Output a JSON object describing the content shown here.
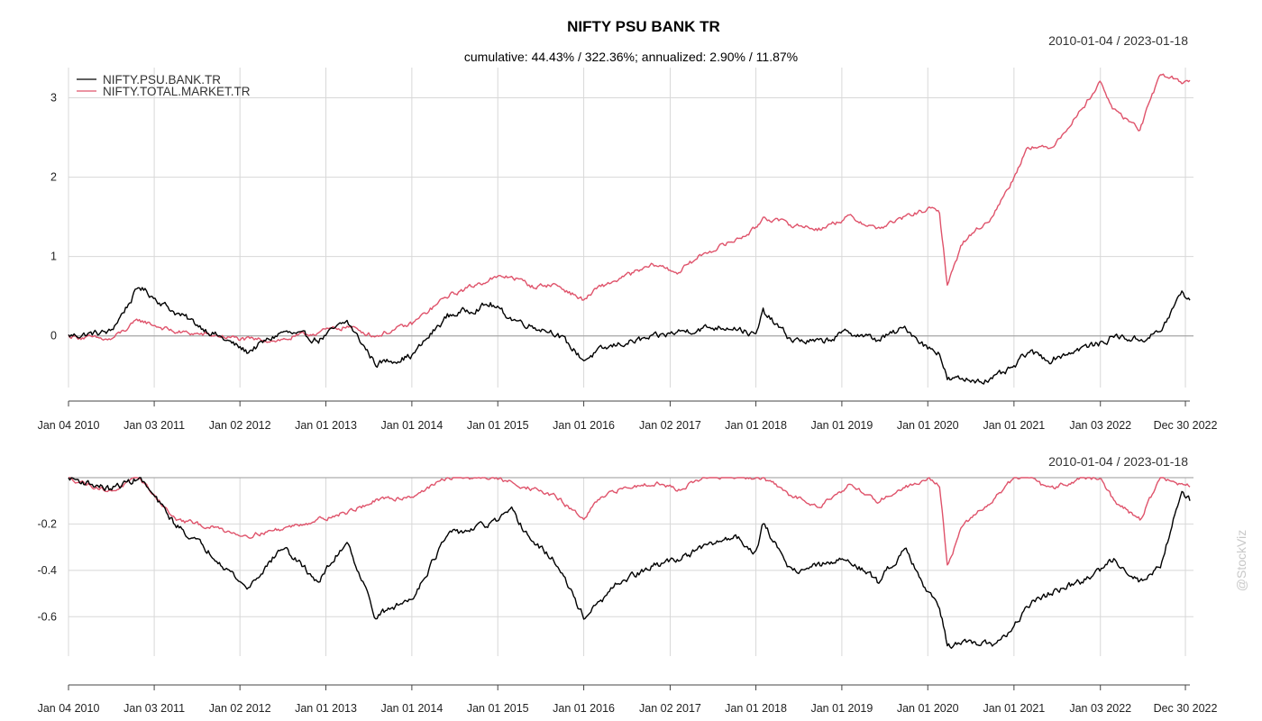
{
  "chart_data": [
    {
      "type": "line",
      "panel": "cumulative returns",
      "title": "NIFTY PSU BANK TR",
      "subtitle": "cumulative: 44.43% / 322.36%; annualized: 2.90% / 11.87%",
      "date_range": "2010-01-04 / 2023-01-18",
      "x_tick_labels": [
        "Jan 04 2010",
        "Jan 03 2011",
        "Jan 02 2012",
        "Jan 01 2013",
        "Jan 01 2014",
        "Jan 01 2015",
        "Jan 01 2016",
        "Jan 02 2017",
        "Jan 01 2018",
        "Jan 01 2019",
        "Jan 01 2020",
        "Jan 01 2021",
        "Jan 03 2022",
        "Dec 30 2022"
      ],
      "y_ticks": [
        0,
        1,
        2,
        3
      ],
      "ylim": [
        -0.65,
        3.38
      ],
      "grid": true,
      "legend_position": "top-left",
      "x_dates": [
        "2010-01-04",
        "2010-07-01",
        "2010-11-01",
        "2011-04-01",
        "2011-10-01",
        "2012-02-01",
        "2012-07-01",
        "2012-12-01",
        "2013-04-01",
        "2013-08-01",
        "2014-01-01",
        "2014-06-01",
        "2014-12-01",
        "2015-03-01",
        "2015-06-01",
        "2015-09-01",
        "2016-01-01",
        "2016-03-01",
        "2016-06-01",
        "2016-11-01",
        "2017-02-01",
        "2017-06-01",
        "2017-10-01",
        "2018-01-01",
        "2018-02-01",
        "2018-06-01",
        "2018-10-01",
        "2019-02-01",
        "2019-06-01",
        "2019-10-01",
        "2020-01-01",
        "2020-02-20",
        "2020-03-24",
        "2020-06-01",
        "2020-10-01",
        "2021-01-01",
        "2021-03-01",
        "2021-06-01",
        "2021-10-15",
        "2022-01-01",
        "2022-03-01",
        "2022-06-20",
        "2022-09-15",
        "2022-12-15",
        "2023-01-18"
      ],
      "series": [
        {
          "name": "NIFTY.PSU.BANK.TR",
          "color": "#000000",
          "values": [
            0.0,
            0.05,
            0.62,
            0.3,
            0.0,
            -0.2,
            0.05,
            -0.05,
            0.18,
            -0.35,
            -0.25,
            0.25,
            0.4,
            0.22,
            0.12,
            0.05,
            -0.3,
            -0.2,
            -0.1,
            -0.02,
            0.05,
            0.1,
            0.12,
            0.0,
            0.3,
            -0.05,
            -0.08,
            0.05,
            -0.05,
            0.1,
            -0.15,
            -0.2,
            -0.55,
            -0.55,
            -0.55,
            -0.4,
            -0.2,
            -0.3,
            -0.15,
            -0.1,
            0.0,
            -0.05,
            0.05,
            0.55,
            0.45
          ]
        },
        {
          "name": "NIFTY.TOTAL.MARKET.TR",
          "color": "#df536b",
          "values": [
            0.0,
            -0.05,
            0.2,
            0.05,
            0.0,
            -0.05,
            -0.05,
            0.05,
            0.12,
            0.0,
            0.15,
            0.5,
            0.72,
            0.75,
            0.62,
            0.65,
            0.45,
            0.6,
            0.72,
            0.9,
            0.8,
            1.05,
            1.2,
            1.35,
            1.5,
            1.4,
            1.35,
            1.5,
            1.35,
            1.5,
            1.6,
            1.55,
            0.65,
            1.2,
            1.5,
            2.0,
            2.4,
            2.35,
            2.85,
            3.2,
            2.85,
            2.6,
            3.3,
            3.2,
            3.22
          ]
        }
      ]
    },
    {
      "type": "line",
      "panel": "drawdown",
      "title": "",
      "date_range": "2010-01-04 / 2023-01-18",
      "x_tick_labels": [
        "Jan 04 2010",
        "Jan 03 2011",
        "Jan 02 2012",
        "Jan 01 2013",
        "Jan 01 2014",
        "Jan 01 2015",
        "Jan 01 2016",
        "Jan 02 2017",
        "Jan 01 2018",
        "Jan 01 2019",
        "Jan 01 2020",
        "Jan 01 2021",
        "Jan 03 2022",
        "Dec 30 2022"
      ],
      "y_ticks": [
        -0.2,
        -0.4,
        -0.6
      ],
      "ylim": [
        -0.77,
        0.0
      ],
      "grid": true,
      "x_dates": [
        "2010-01-04",
        "2010-07-01",
        "2010-11-01",
        "2011-04-01",
        "2011-10-01",
        "2012-02-01",
        "2012-07-01",
        "2012-12-01",
        "2013-04-01",
        "2013-08-01",
        "2014-01-01",
        "2014-06-01",
        "2014-12-01",
        "2015-03-01",
        "2015-06-01",
        "2015-09-01",
        "2016-01-01",
        "2016-03-01",
        "2016-06-01",
        "2016-11-01",
        "2017-02-01",
        "2017-06-01",
        "2017-10-01",
        "2018-01-01",
        "2018-02-01",
        "2018-06-01",
        "2018-10-01",
        "2019-02-01",
        "2019-06-01",
        "2019-10-01",
        "2020-01-01",
        "2020-02-20",
        "2020-03-24",
        "2020-06-01",
        "2020-10-01",
        "2021-01-01",
        "2021-03-01",
        "2021-06-01",
        "2021-10-15",
        "2022-01-01",
        "2022-03-01",
        "2022-06-20",
        "2022-09-15",
        "2022-12-15",
        "2023-01-18"
      ],
      "series": [
        {
          "name": "NIFTY.PSU.BANK.TR",
          "color": "#000000",
          "values": [
            0.0,
            -0.05,
            0.0,
            -0.2,
            -0.35,
            -0.48,
            -0.3,
            -0.45,
            -0.27,
            -0.6,
            -0.52,
            -0.25,
            -0.2,
            -0.15,
            -0.28,
            -0.36,
            -0.6,
            -0.55,
            -0.45,
            -0.38,
            -0.35,
            -0.3,
            -0.25,
            -0.32,
            -0.2,
            -0.4,
            -0.38,
            -0.35,
            -0.45,
            -0.3,
            -0.5,
            -0.55,
            -0.72,
            -0.72,
            -0.72,
            -0.65,
            -0.55,
            -0.5,
            -0.45,
            -0.4,
            -0.35,
            -0.45,
            -0.38,
            -0.05,
            -0.1
          ]
        },
        {
          "name": "NIFTY.TOTAL.MARKET.TR",
          "color": "#df536b",
          "values": [
            0.0,
            -0.06,
            0.0,
            -0.18,
            -0.22,
            -0.25,
            -0.22,
            -0.18,
            -0.15,
            -0.1,
            -0.08,
            0.0,
            0.0,
            -0.02,
            -0.05,
            -0.08,
            -0.18,
            -0.1,
            -0.05,
            -0.02,
            -0.05,
            0.0,
            0.0,
            0.0,
            0.0,
            -0.08,
            -0.12,
            -0.03,
            -0.1,
            -0.04,
            0.0,
            -0.03,
            -0.38,
            -0.2,
            -0.1,
            0.0,
            0.0,
            -0.05,
            0.0,
            0.0,
            -0.1,
            -0.18,
            0.0,
            -0.03,
            -0.04
          ]
        }
      ]
    }
  ],
  "watermark": "@StockViz"
}
